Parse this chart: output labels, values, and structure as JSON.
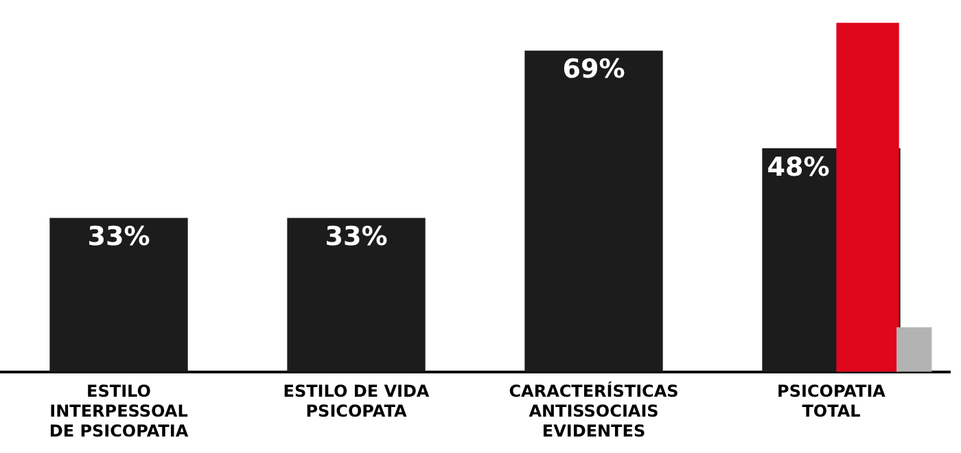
{
  "chart_data": {
    "type": "bar",
    "categories": [
      "ESTILO INTERPESSOAL DE PSICOPATIA",
      "ESTILO DE VIDA PSICOPATA",
      "CARACTERÍSTICAS ANTISSOCIAIS EVIDENTES",
      "PSICOPATIA TOTAL"
    ],
    "series": [
      {
        "color": "#1c1c1c",
        "values": [
          33,
          33,
          69,
          48
        ],
        "value_labels": [
          "33%",
          "33%",
          "69%",
          "48%"
        ]
      },
      {
        "color": "#e0061b",
        "values": [
          null,
          null,
          null,
          75
        ]
      },
      {
        "color": "#b3b3b3",
        "values": [
          null,
          null,
          null,
          9.5
        ]
      }
    ],
    "legend": false,
    "tick_labels": "x"
  }
}
